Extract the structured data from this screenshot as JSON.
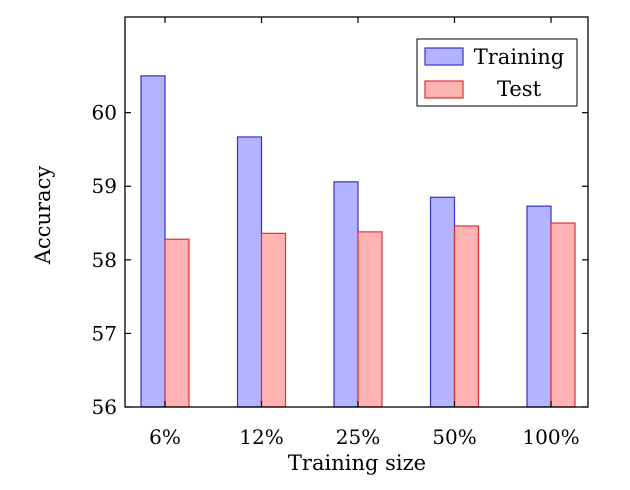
{
  "chart_data": {
    "type": "bar",
    "categories": [
      "6%",
      "12%",
      "25%",
      "50%",
      "100%"
    ],
    "series": [
      {
        "name": "Training",
        "values": [
          60.5,
          59.67,
          59.06,
          58.85,
          58.73
        ],
        "fill": "#b3b3ff",
        "stroke": "#3333cc"
      },
      {
        "name": "Test",
        "values": [
          58.28,
          58.36,
          58.38,
          58.46,
          58.5
        ],
        "fill": "#ffb3b3",
        "stroke": "#e03030"
      }
    ],
    "xlabel": "Training size",
    "ylabel": "Accuracy",
    "ylim": [
      56,
      61.3
    ],
    "yticks": [
      56,
      57,
      58,
      59,
      60
    ],
    "grid": false,
    "legend": "top-right"
  }
}
